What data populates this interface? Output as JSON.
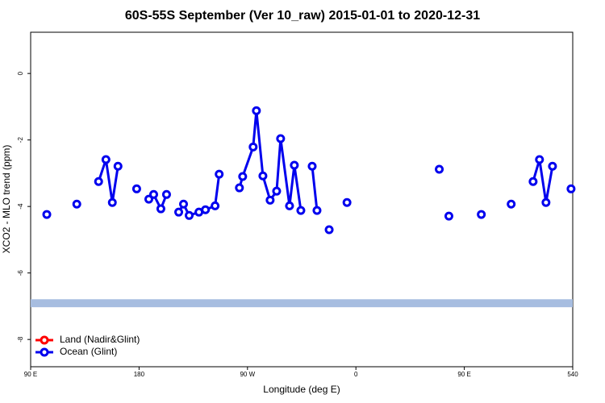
{
  "chart_data": {
    "type": "line",
    "title": "60S-55S September (Ver 10_raw)   2015-01-01 to 2020-12-31",
    "x_label": "Longitude (deg E)",
    "y_label": "XCO2 - MLO trend (ppm)",
    "xlim": [
      90,
      540
    ],
    "xticks": [
      {
        "value": 90,
        "label": "90 E"
      },
      180,
      {
        "value": 270,
        "label": "90 W"
      },
      {
        "value": 360,
        "label": "0"
      },
      {
        "value": 450,
        "label": "90 E"
      },
      540
    ],
    "ylim": [
      -8.82,
      1.24
    ],
    "yticks": [
      0,
      -2,
      -4,
      -6,
      -8
    ],
    "reference_band": [
      -7.03,
      -6.79
    ],
    "band_color": "#a7bde0",
    "legend": "bottom-left",
    "series": [
      {
        "name": "Land (Nadir&Glint)",
        "color": "#ff0000",
        "x": [],
        "values": []
      },
      {
        "name": "Ocean (Glint)",
        "color": "#0000ee",
        "x": [
          103.4,
          null,
          128.3,
          null,
          146.4,
          152.5,
          157.8,
          162.5,
          null,
          178.0,
          null,
          188.1,
          192.1,
          198.1,
          202.8,
          null,
          212.9,
          216.9,
          221.6,
          229.7,
          235.1,
          243.1,
          246.5,
          null,
          263.3,
          266.0,
          274.7,
          277.4,
          282.8,
          288.8,
          294.2,
          297.5,
          304.9,
          308.9,
          314.3,
          null,
          323.7,
          327.7,
          null,
          337.8,
          null,
          352.6,
          null,
          429.2,
          null,
          437.2,
          null,
          464.1,
          null,
          488.9,
          null,
          507.1,
          512.4,
          517.8,
          523.2,
          null,
          538.6
        ],
        "values": [
          -4.24,
          null,
          -3.93,
          null,
          -3.25,
          -2.59,
          -3.88,
          -2.79,
          null,
          -3.47,
          null,
          -3.78,
          -3.64,
          -4.07,
          -3.64,
          null,
          -4.17,
          -3.93,
          -4.27,
          -4.17,
          -4.1,
          -3.98,
          -3.03,
          null,
          -3.44,
          -3.1,
          -2.21,
          -1.12,
          -3.08,
          -3.81,
          -3.54,
          -1.96,
          -3.98,
          -2.76,
          -4.12,
          null,
          -2.79,
          -4.12,
          null,
          -4.7,
          null,
          -3.88,
          null,
          -2.88,
          null,
          -4.29,
          null,
          -4.24,
          null,
          -3.93,
          null,
          -3.25,
          -2.59,
          -3.88,
          -2.79,
          null,
          -3.47
        ]
      }
    ]
  }
}
